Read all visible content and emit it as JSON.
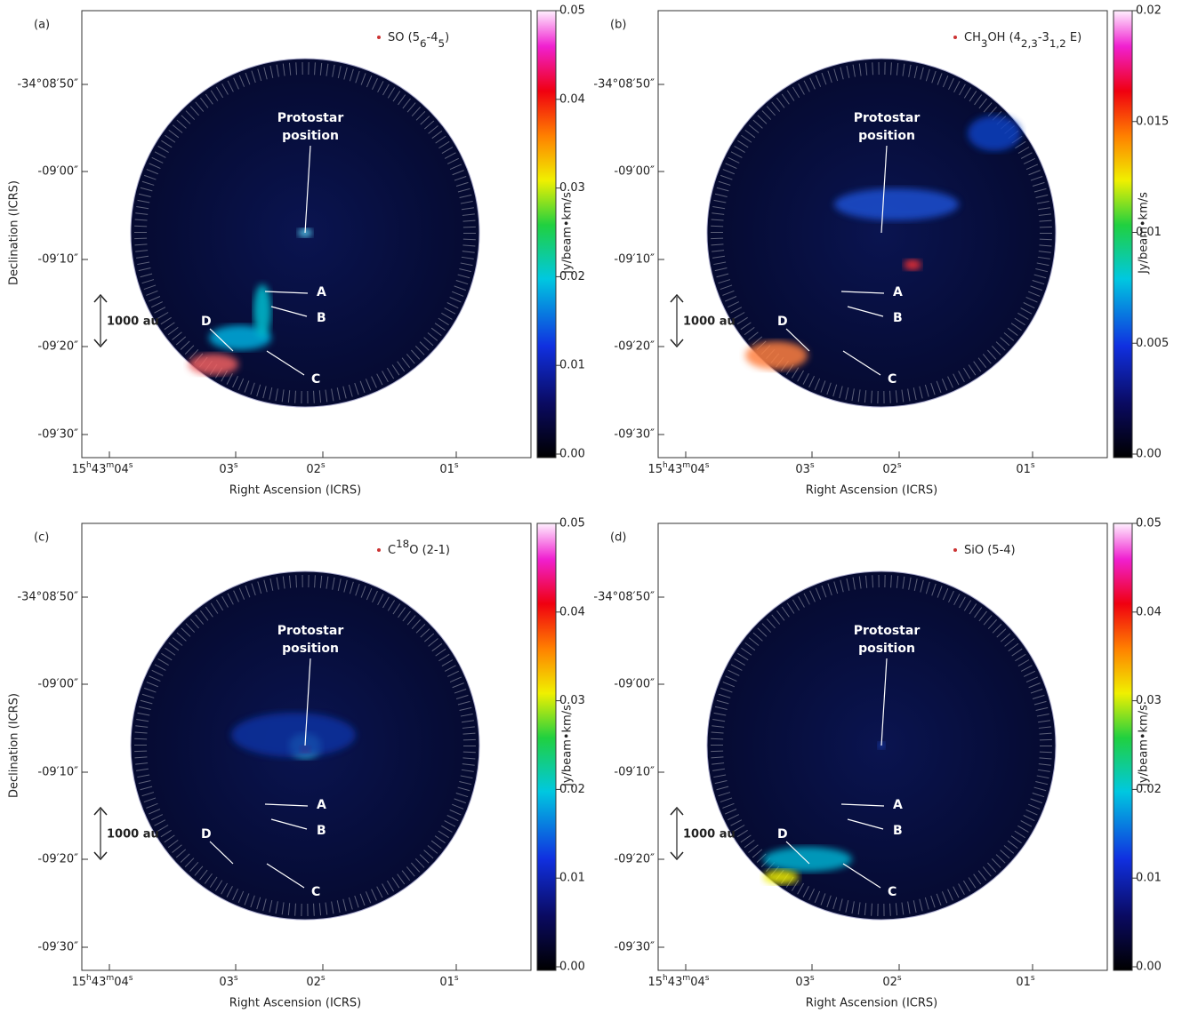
{
  "panels": [
    {
      "label": "(a)",
      "title": [
        {
          "text": "SO (5"
        },
        {
          "text": "6",
          "sub": true
        },
        {
          "text": "-4"
        },
        {
          "text": "5",
          "sub": true
        },
        {
          "text": ")"
        }
      ],
      "y_axis_label": "Declination (ICRS)",
      "x_axis_label": "Right Ascension (ICRS)",
      "dec_ticks": [
        "-34°08′50″",
        "-09′00″",
        "-09′10″",
        "-09′20″",
        "-09′30″"
      ],
      "ra_ticks": [
        [
          {
            "text": "15"
          },
          {
            "text": "h",
            "sup": true
          },
          {
            "text": "43"
          },
          {
            "text": "m",
            "sup": true
          },
          {
            "text": "04"
          },
          {
            "text": "s",
            "sup": true
          }
        ],
        [
          {
            "text": "03"
          },
          {
            "text": "s",
            "sup": true
          }
        ],
        [
          {
            "text": "02"
          },
          {
            "text": "s",
            "sup": true
          }
        ],
        [
          {
            "text": "01"
          },
          {
            "text": "s",
            "sup": true
          }
        ]
      ],
      "colorbar_label": "Jy/beam•km/s",
      "colorbar_ticks": [
        "0.05",
        "0.04",
        "0.03",
        "0.02",
        "0.01",
        "0.00"
      ],
      "annotations": {
        "protostar": [
          "Protostar",
          "position"
        ],
        "A": "A",
        "B": "B",
        "C": "C",
        "D": "D",
        "scale": "1000 au"
      }
    },
    {
      "label": "(b)",
      "title": [
        {
          "text": "CH"
        },
        {
          "text": "3",
          "sub": true
        },
        {
          "text": "OH (4"
        },
        {
          "text": "2,3",
          "sub": true
        },
        {
          "text": "-3"
        },
        {
          "text": "1,2",
          "sub": true
        },
        {
          "text": " E)"
        }
      ],
      "x_axis_label": "Right Ascension (ICRS)",
      "dec_ticks": [
        "-34°08′50″",
        "-09′00″",
        "-09′10″",
        "-09′20″",
        "-09′30″"
      ],
      "ra_ticks": [
        [
          {
            "text": "15"
          },
          {
            "text": "h",
            "sup": true
          },
          {
            "text": "43"
          },
          {
            "text": "m",
            "sup": true
          },
          {
            "text": "04"
          },
          {
            "text": "s",
            "sup": true
          }
        ],
        [
          {
            "text": "03"
          },
          {
            "text": "s",
            "sup": true
          }
        ],
        [
          {
            "text": "02"
          },
          {
            "text": "s",
            "sup": true
          }
        ],
        [
          {
            "text": "01"
          },
          {
            "text": "s",
            "sup": true
          }
        ]
      ],
      "colorbar_label": "Jy/beam•km/s",
      "colorbar_ticks": [
        "0.02",
        "0.015",
        "0.01",
        "0.005",
        "0.00"
      ],
      "annotations": {
        "protostar": [
          "Protostar",
          "position"
        ],
        "A": "A",
        "B": "B",
        "C": "C",
        "D": "D",
        "scale": "1000 au"
      }
    },
    {
      "label": "(c)",
      "title": [
        {
          "text": "C"
        },
        {
          "text": "18",
          "sup": true
        },
        {
          "text": "O (2-1)"
        }
      ],
      "y_axis_label": "Declination (ICRS)",
      "x_axis_label": "Right Ascension (ICRS)",
      "dec_ticks": [
        "-34°08′50″",
        "-09′00″",
        "-09′10″",
        "-09′20″",
        "-09′30″"
      ],
      "ra_ticks": [
        [
          {
            "text": "15"
          },
          {
            "text": "h",
            "sup": true
          },
          {
            "text": "43"
          },
          {
            "text": "m",
            "sup": true
          },
          {
            "text": "04"
          },
          {
            "text": "s",
            "sup": true
          }
        ],
        [
          {
            "text": "03"
          },
          {
            "text": "s",
            "sup": true
          }
        ],
        [
          {
            "text": "02"
          },
          {
            "text": "s",
            "sup": true
          }
        ],
        [
          {
            "text": "01"
          },
          {
            "text": "s",
            "sup": true
          }
        ]
      ],
      "colorbar_label": "Jy/beam•km/s",
      "colorbar_ticks": [
        "0.05",
        "0.04",
        "0.03",
        "0.02",
        "0.01",
        "0.00"
      ],
      "annotations": {
        "protostar": [
          "Protostar",
          "position"
        ],
        "A": "A",
        "B": "B",
        "C": "C",
        "D": "D",
        "scale": "1000 au"
      }
    },
    {
      "label": "(d)",
      "title": [
        {
          "text": "SiO (5-4)"
        }
      ],
      "x_axis_label": "Right Ascension (ICRS)",
      "dec_ticks": [
        "-34°08′50″",
        "-09′00″",
        "-09′10″",
        "-09′20″",
        "-09′30″"
      ],
      "ra_ticks": [
        [
          {
            "text": "15"
          },
          {
            "text": "h",
            "sup": true
          },
          {
            "text": "43"
          },
          {
            "text": "m",
            "sup": true
          },
          {
            "text": "04"
          },
          {
            "text": "s",
            "sup": true
          }
        ],
        [
          {
            "text": "03"
          },
          {
            "text": "s",
            "sup": true
          }
        ],
        [
          {
            "text": "02"
          },
          {
            "text": "s",
            "sup": true
          }
        ],
        [
          {
            "text": "01"
          },
          {
            "text": "s",
            "sup": true
          }
        ]
      ],
      "colorbar_label": "Jy/beam•km/s",
      "colorbar_ticks": [
        "0.05",
        "0.04",
        "0.03",
        "0.02",
        "0.01",
        "0.00"
      ],
      "annotations": {
        "protostar": [
          "Protostar",
          "position"
        ],
        "A": "A",
        "B": "B",
        "C": "C",
        "D": "D",
        "scale": "1000 au"
      }
    }
  ]
}
